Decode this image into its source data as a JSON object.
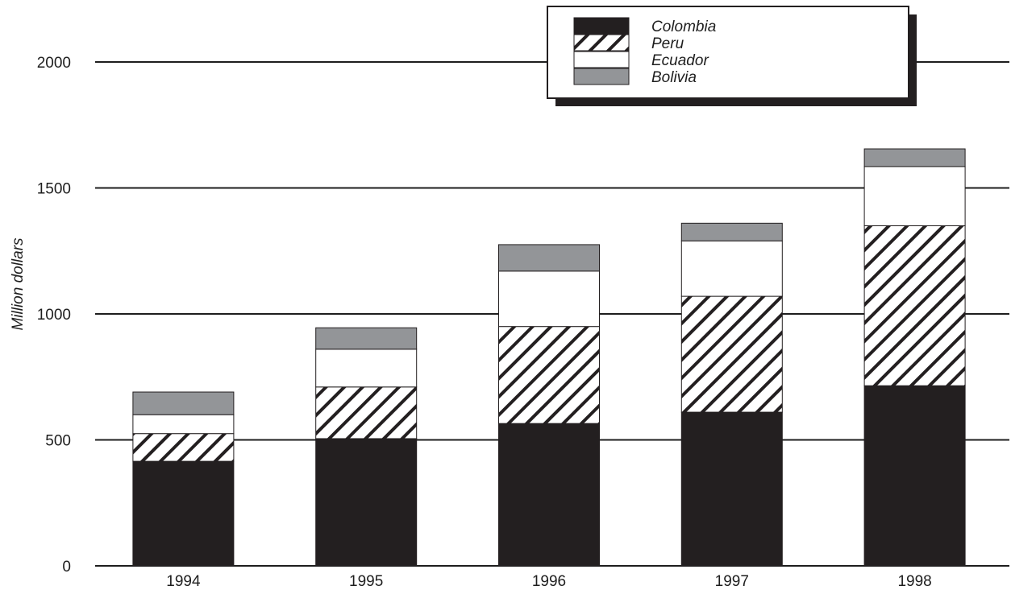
{
  "chart_data": {
    "type": "bar",
    "stacked": true,
    "categories": [
      "1994",
      "1995",
      "1996",
      "1997",
      "1998"
    ],
    "series": [
      {
        "name": "Colombia",
        "values": [
          415,
          505,
          565,
          610,
          715
        ],
        "fill": "black"
      },
      {
        "name": "Peru",
        "values": [
          110,
          205,
          385,
          460,
          635
        ],
        "fill": "hatch"
      },
      {
        "name": "Ecuador",
        "values": [
          75,
          150,
          220,
          220,
          235
        ],
        "fill": "white"
      },
      {
        "name": "Bolivia",
        "values": [
          90,
          85,
          105,
          70,
          70
        ],
        "fill": "gray"
      }
    ],
    "xlabel": "",
    "ylabel": "Million dollars",
    "ylim": [
      0,
      2000
    ],
    "yticks": [
      "0",
      "500",
      "1000",
      "1500",
      "2000"
    ],
    "grid": true,
    "legend_position": "top-right",
    "colors": {
      "colombia": "#231f20",
      "bolivia": "#939598",
      "ecuador": "#ffffff",
      "peru_hatch": "#231f20",
      "axis": "#1e1e1e"
    }
  }
}
